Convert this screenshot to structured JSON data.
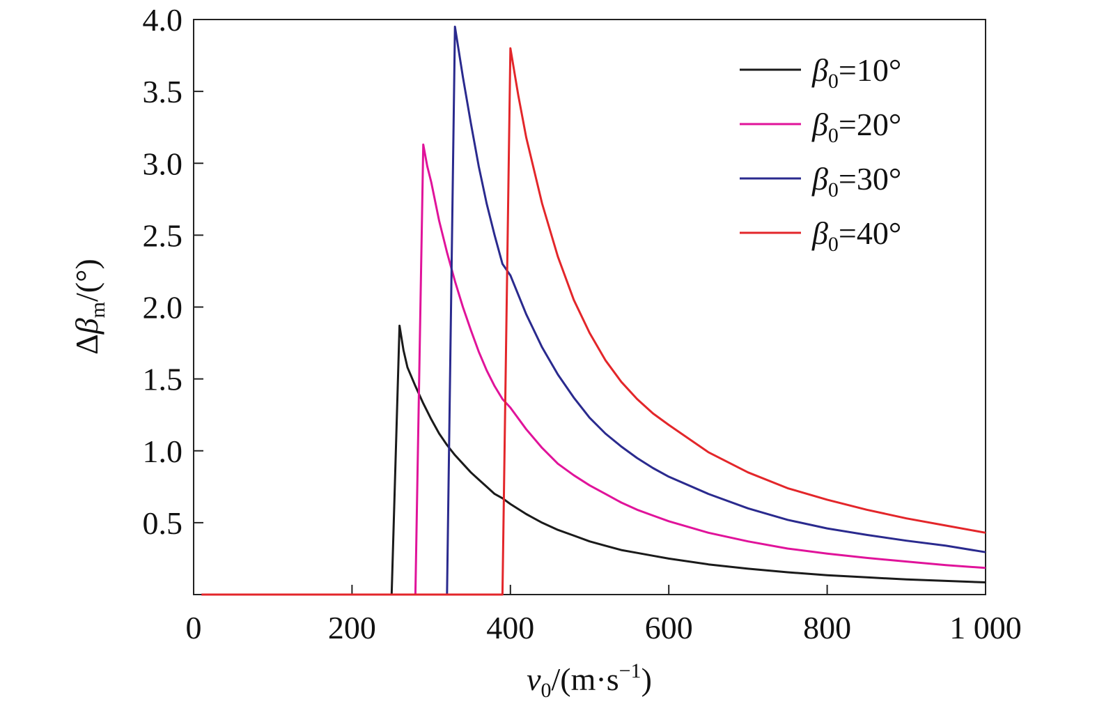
{
  "chart_data": {
    "type": "line",
    "xlabel": {
      "var": "v",
      "sub": "0",
      "units": "/(m·s",
      "sup": "−1",
      "close": ")"
    },
    "ylabel": {
      "delta": "Δ",
      "var": "β",
      "sub": "m",
      "units": "/(°)"
    },
    "xlim": [
      0,
      1000
    ],
    "ylim": [
      0,
      4.0
    ],
    "xticks": [
      0,
      200,
      400,
      600,
      800,
      1000
    ],
    "xtick_labels": [
      "0",
      "200",
      "400",
      "600",
      "800",
      "1 000"
    ],
    "yticks": [
      0.5,
      1.0,
      1.5,
      2.0,
      2.5,
      3.0,
      3.5,
      4.0
    ],
    "ytick_labels": [
      "0.5",
      "1.0",
      "1.5",
      "2.0",
      "2.5",
      "3.0",
      "3.5",
      "4.0"
    ],
    "grid": false,
    "legend_position": "top-right",
    "series": [
      {
        "name": "β0=10°",
        "label": {
          "var": "β",
          "sub": "0",
          "rest": "=10°"
        },
        "color": "#1a1a1a",
        "x": [
          10,
          250,
          260,
          265,
          270,
          280,
          290,
          300,
          310,
          320,
          330,
          340,
          350,
          360,
          370,
          380,
          390,
          400,
          420,
          440,
          460,
          480,
          500,
          520,
          540,
          560,
          580,
          600,
          650,
          700,
          750,
          800,
          850,
          900,
          950,
          1000
        ],
        "y": [
          0,
          0,
          1.87,
          1.7,
          1.58,
          1.45,
          1.33,
          1.22,
          1.12,
          1.04,
          0.97,
          0.91,
          0.85,
          0.8,
          0.75,
          0.7,
          0.67,
          0.63,
          0.56,
          0.5,
          0.45,
          0.41,
          0.37,
          0.34,
          0.31,
          0.29,
          0.27,
          0.25,
          0.21,
          0.18,
          0.155,
          0.135,
          0.12,
          0.105,
          0.095,
          0.085
        ]
      },
      {
        "name": "β0=20°",
        "label": {
          "var": "β",
          "sub": "0",
          "rest": "=20°"
        },
        "color": "#e0139a",
        "x": [
          10,
          280,
          290,
          295,
          300,
          310,
          320,
          330,
          340,
          350,
          360,
          370,
          380,
          390,
          400,
          420,
          440,
          460,
          480,
          500,
          520,
          540,
          560,
          580,
          600,
          650,
          700,
          750,
          800,
          850,
          900,
          950,
          1000
        ],
        "y": [
          0,
          0,
          3.13,
          2.98,
          2.87,
          2.6,
          2.38,
          2.18,
          2.0,
          1.84,
          1.69,
          1.56,
          1.45,
          1.36,
          1.3,
          1.15,
          1.02,
          0.91,
          0.83,
          0.76,
          0.7,
          0.64,
          0.59,
          0.55,
          0.51,
          0.43,
          0.37,
          0.32,
          0.285,
          0.255,
          0.23,
          0.205,
          0.185
        ]
      },
      {
        "name": "β0=30°",
        "label": {
          "var": "β",
          "sub": "0",
          "rest": "=30°"
        },
        "color": "#2a2a8e",
        "x": [
          10,
          320,
          330,
          340,
          350,
          360,
          370,
          380,
          390,
          400,
          420,
          440,
          460,
          480,
          500,
          520,
          540,
          560,
          580,
          600,
          650,
          700,
          750,
          800,
          850,
          900,
          950,
          1000
        ],
        "y": [
          0,
          0,
          3.95,
          3.6,
          3.28,
          2.98,
          2.72,
          2.5,
          2.3,
          2.22,
          1.95,
          1.72,
          1.53,
          1.37,
          1.23,
          1.12,
          1.03,
          0.95,
          0.88,
          0.82,
          0.7,
          0.6,
          0.52,
          0.46,
          0.415,
          0.375,
          0.34,
          0.295
        ]
      },
      {
        "name": "β0=40°",
        "label": {
          "var": "β",
          "sub": "0",
          "rest": "=40°"
        },
        "color": "#e3262a",
        "x": [
          10,
          390,
          400,
          410,
          420,
          440,
          460,
          480,
          500,
          520,
          540,
          560,
          580,
          600,
          650,
          700,
          750,
          800,
          850,
          900,
          950,
          1000
        ],
        "y": [
          0,
          0,
          3.8,
          3.47,
          3.18,
          2.72,
          2.35,
          2.05,
          1.82,
          1.63,
          1.48,
          1.36,
          1.26,
          1.18,
          0.99,
          0.85,
          0.74,
          0.66,
          0.59,
          0.53,
          0.48,
          0.43
        ]
      }
    ]
  }
}
